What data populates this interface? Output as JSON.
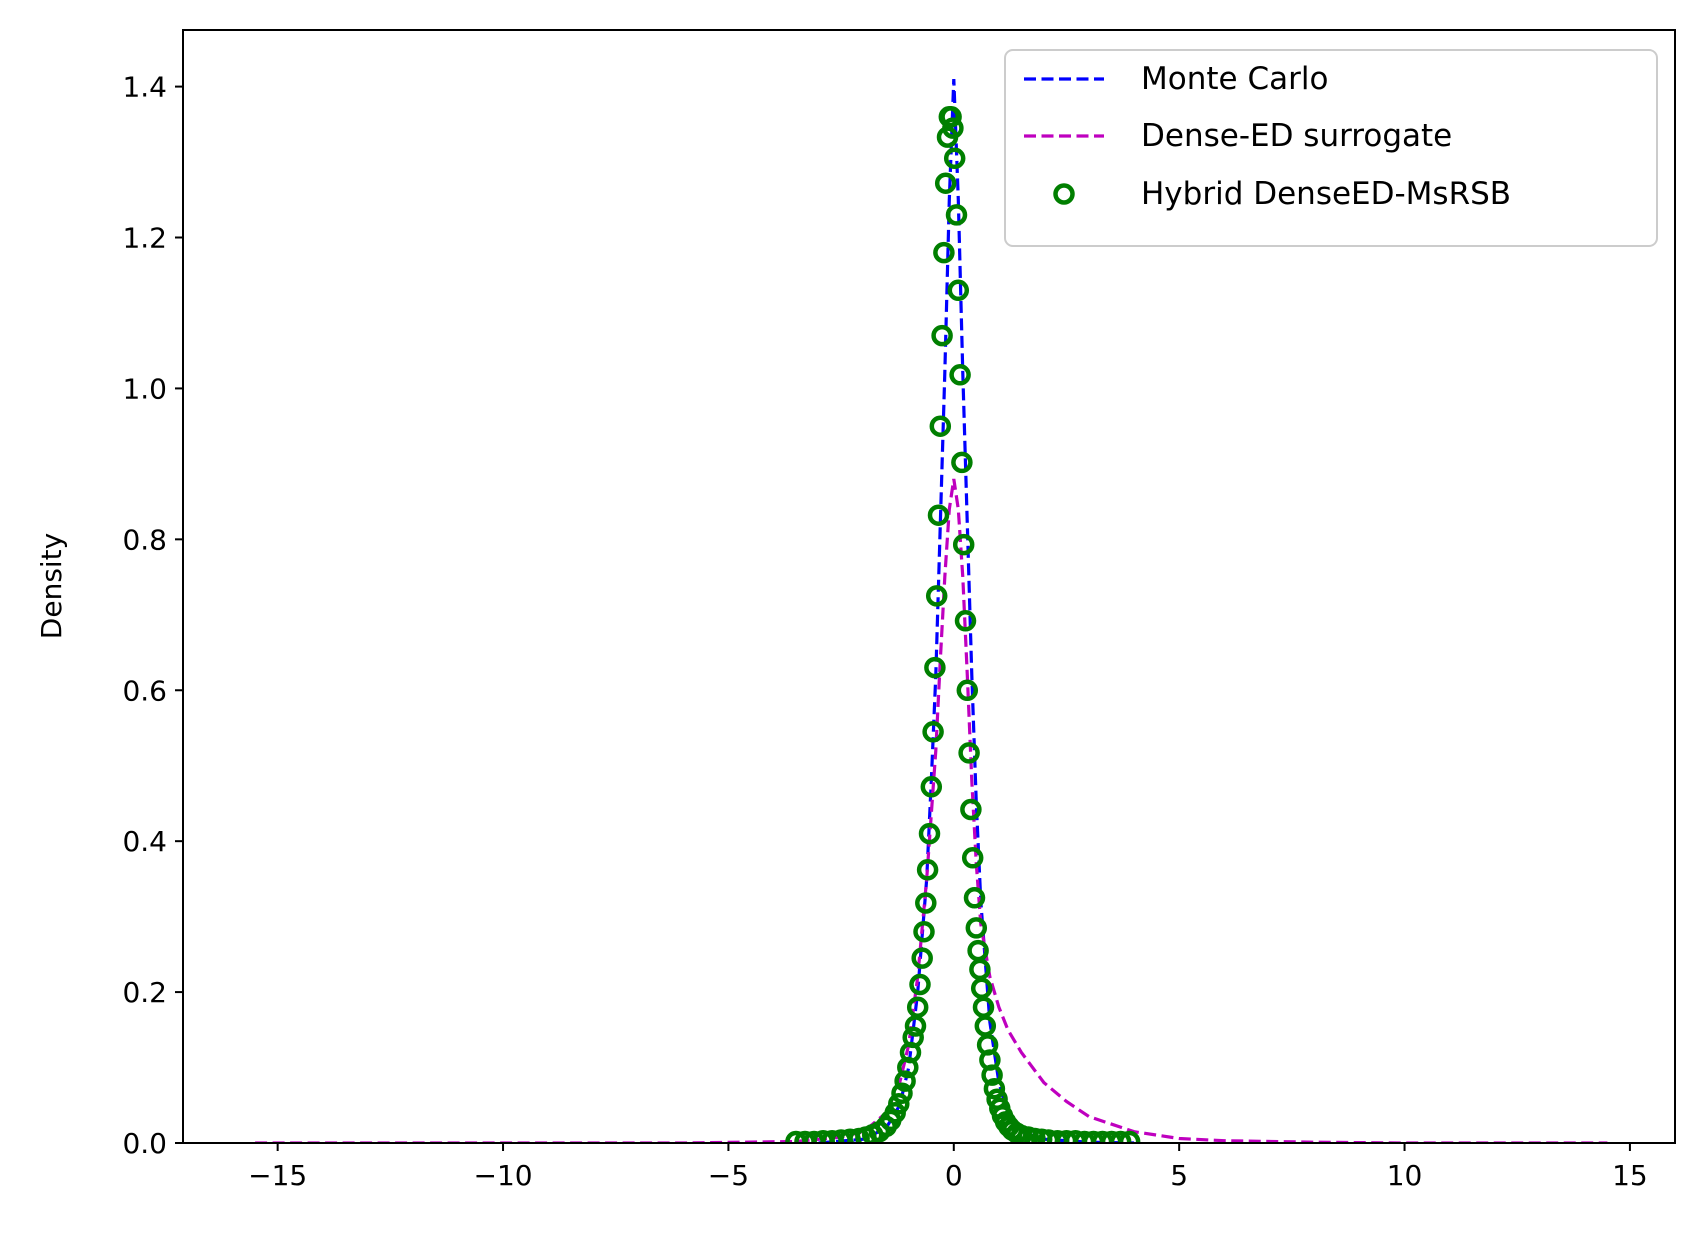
{
  "chart_data": {
    "type": "line",
    "title": "",
    "xlabel": "",
    "ylabel": "Density",
    "xlim": [
      -17.1,
      16.0
    ],
    "ylim": [
      0.0,
      1.475
    ],
    "xticks": [
      -15,
      -10,
      -5,
      0,
      5,
      10,
      15
    ],
    "xtick_labels": [
      "−15",
      "−10",
      "−5",
      "0",
      "5",
      "10",
      "15"
    ],
    "yticks": [
      0.0,
      0.2,
      0.4,
      0.6,
      0.8,
      1.0,
      1.2,
      1.4
    ],
    "ytick_labels": [
      "0.0",
      "0.2",
      "0.4",
      "0.6",
      "0.8",
      "1.0",
      "1.2",
      "1.4"
    ],
    "grid": false,
    "legend_position": "upper-right",
    "series": [
      {
        "name": "Monte Carlo",
        "style": "dashed-line",
        "color": "#0000ff",
        "x": [
          -3.0,
          -2.0,
          -1.5,
          -1.2,
          -1.0,
          -0.8,
          -0.6,
          -0.5,
          -0.4,
          -0.3,
          -0.2,
          -0.1,
          0.0,
          0.1,
          0.2,
          0.3,
          0.4,
          0.5,
          0.6,
          0.8,
          1.0,
          1.2,
          1.5,
          2.0,
          3.0,
          4.0
        ],
        "y": [
          0.0,
          0.005,
          0.02,
          0.05,
          0.1,
          0.2,
          0.35,
          0.48,
          0.62,
          0.82,
          1.02,
          1.25,
          1.41,
          1.25,
          1.02,
          0.82,
          0.62,
          0.45,
          0.32,
          0.16,
          0.08,
          0.04,
          0.015,
          0.005,
          0.001,
          0.0
        ]
      },
      {
        "name": "Dense-ED surrogate",
        "style": "dashed-line",
        "color": "#bf00bf",
        "x": [
          -15.5,
          -6.0,
          -3.5,
          -2.5,
          -2.0,
          -1.5,
          -1.2,
          -1.0,
          -0.8,
          -0.6,
          -0.4,
          -0.3,
          -0.2,
          -0.1,
          0.0,
          0.1,
          0.2,
          0.3,
          0.4,
          0.5,
          0.6,
          0.8,
          1.0,
          1.2,
          1.5,
          2.0,
          2.5,
          3.0,
          4.0,
          5.0,
          6.0,
          8.0,
          10.0,
          14.5
        ],
        "y": [
          0.0,
          0.0,
          0.002,
          0.008,
          0.015,
          0.04,
          0.08,
          0.13,
          0.22,
          0.35,
          0.52,
          0.64,
          0.75,
          0.84,
          0.88,
          0.84,
          0.75,
          0.62,
          0.48,
          0.37,
          0.29,
          0.22,
          0.18,
          0.15,
          0.12,
          0.08,
          0.055,
          0.035,
          0.015,
          0.006,
          0.003,
          0.001,
          0.0,
          0.0
        ]
      },
      {
        "name": "Hybrid DenseED-MsRSB",
        "style": "circle-markers",
        "color": "#007f00",
        "x": [
          -3.5,
          -3.3,
          -3.1,
          -2.9,
          -2.7,
          -2.5,
          -2.3,
          -2.1,
          -1.95,
          -1.8,
          -1.65,
          -1.5,
          -1.4,
          -1.3,
          -1.22,
          -1.15,
          -1.08,
          -1.02,
          -0.96,
          -0.9,
          -0.85,
          -0.8,
          -0.75,
          -0.7,
          -0.66,
          -0.62,
          -0.58,
          -0.54,
          -0.5,
          -0.46,
          -0.42,
          -0.38,
          -0.34,
          -0.3,
          -0.26,
          -0.22,
          -0.18,
          -0.14,
          -0.1,
          -0.06,
          -0.02,
          0.02,
          0.06,
          0.1,
          0.14,
          0.18,
          0.22,
          0.26,
          0.3,
          0.34,
          0.38,
          0.42,
          0.46,
          0.5,
          0.54,
          0.58,
          0.62,
          0.66,
          0.7,
          0.75,
          0.8,
          0.85,
          0.9,
          0.96,
          1.02,
          1.08,
          1.15,
          1.22,
          1.3,
          1.4,
          1.5,
          1.65,
          1.8,
          1.95,
          2.1,
          2.3,
          2.5,
          2.7,
          2.9,
          3.1,
          3.3,
          3.5,
          3.7,
          3.9
        ],
        "y": [
          0.002,
          0.002,
          0.002,
          0.003,
          0.003,
          0.004,
          0.005,
          0.006,
          0.008,
          0.011,
          0.015,
          0.022,
          0.03,
          0.04,
          0.052,
          0.066,
          0.082,
          0.1,
          0.12,
          0.14,
          0.155,
          0.18,
          0.21,
          0.245,
          0.28,
          0.318,
          0.362,
          0.41,
          0.472,
          0.545,
          0.63,
          0.725,
          0.832,
          0.95,
          1.07,
          1.18,
          1.272,
          1.333,
          1.36,
          1.36,
          1.345,
          1.305,
          1.23,
          1.13,
          1.018,
          0.902,
          0.793,
          0.692,
          0.6,
          0.517,
          0.442,
          0.378,
          0.325,
          0.285,
          0.255,
          0.23,
          0.205,
          0.18,
          0.155,
          0.13,
          0.11,
          0.09,
          0.072,
          0.058,
          0.046,
          0.036,
          0.028,
          0.022,
          0.017,
          0.013,
          0.01,
          0.008,
          0.006,
          0.005,
          0.004,
          0.003,
          0.003,
          0.003,
          0.002,
          0.002,
          0.002,
          0.002,
          0.002,
          0.002
        ]
      }
    ]
  }
}
